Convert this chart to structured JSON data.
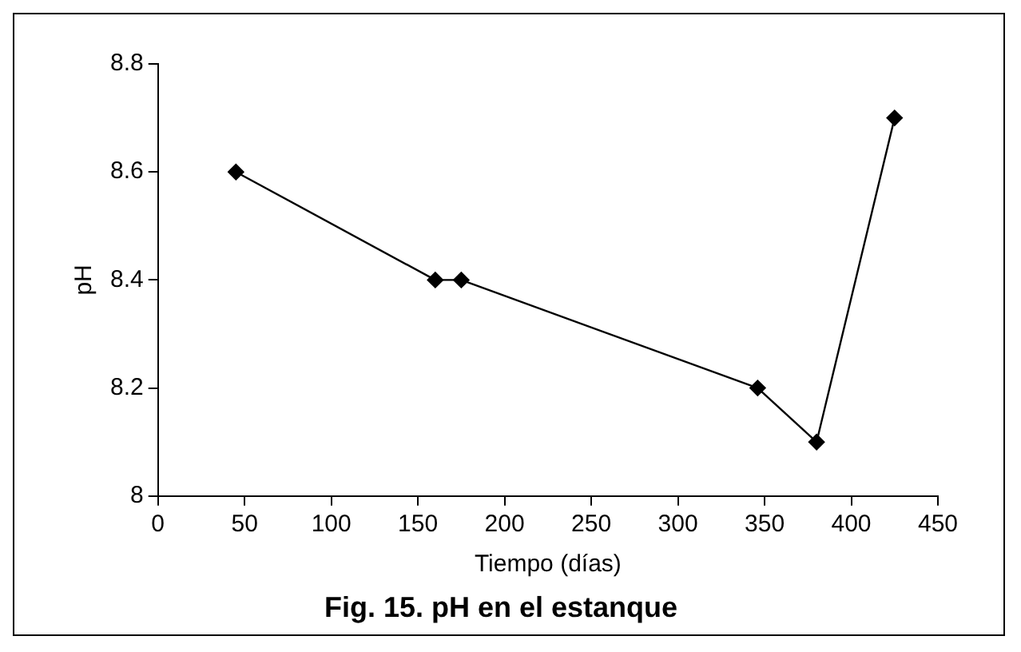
{
  "chart_data": {
    "type": "line",
    "title": "Fig. 15. pH en el estanque",
    "xlabel": "Tiempo (días)",
    "ylabel": "pH",
    "x": [
      45,
      160,
      175,
      346,
      380,
      425
    ],
    "series": [
      {
        "color": "#000000",
        "values": [
          8.6,
          8.4,
          8.4,
          8.2,
          8.1,
          8.7
        ]
      }
    ],
    "xlim": [
      0,
      450
    ],
    "xticks": [
      0,
      50,
      100,
      150,
      200,
      250,
      300,
      350,
      400,
      450
    ],
    "ylim": [
      8,
      8.8
    ],
    "yticks": [
      8,
      8.2,
      8.4,
      8.6,
      8.8
    ],
    "grid": false,
    "legend": false,
    "marker": "diamond",
    "line_style": "solid"
  }
}
